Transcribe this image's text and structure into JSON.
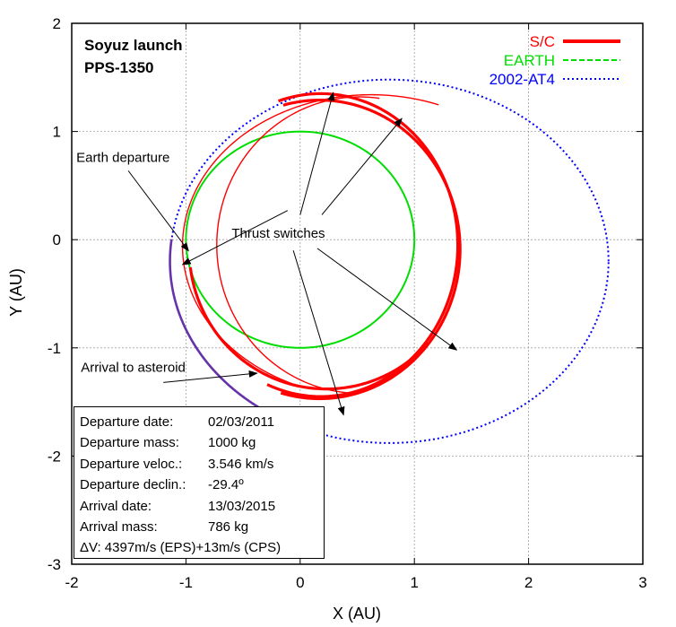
{
  "chart_data": {
    "type": "line",
    "title_lines": [
      "Soyuz launch",
      "PPS-1350"
    ],
    "xlabel": "X (AU)",
    "ylabel": "Y (AU)",
    "xlim": [
      -2,
      3
    ],
    "ylim": [
      -3,
      2
    ],
    "xticks": [
      -2,
      -1,
      0,
      1,
      2,
      3
    ],
    "yticks": [
      -3,
      -2,
      -1,
      0,
      1,
      2
    ],
    "grid": true,
    "legend_position": "top-right",
    "series": [
      {
        "name": "S/C",
        "color": "#ff0000",
        "style": "solid-thick"
      },
      {
        "name": "EARTH",
        "color": "#00dd00",
        "style": "dashed"
      },
      {
        "name": "2002-AT4",
        "color": "#0000ff",
        "style": "dotted"
      }
    ],
    "earth_orbit": {
      "center": [
        0,
        0
      ],
      "radius": 1.0
    },
    "asteroid_orbit": {
      "center": [
        0.78,
        -0.2
      ],
      "rx": 1.92,
      "ry": 1.68
    },
    "spacecraft_arcs": [
      {
        "center": [
          0.18,
          -0.05
        ],
        "rx": 1.2,
        "ry": 1.4,
        "start_deg": 247,
        "end_deg": 468,
        "thrust": true
      },
      {
        "center": [
          0.62,
          -0.06
        ],
        "rx": 1.65,
        "ry": 1.4,
        "start_deg": 69,
        "end_deg": 248,
        "thrust": false
      },
      {
        "center": [
          0.17,
          -0.09
        ],
        "rx": 1.23,
        "ry": 1.38,
        "start_deg": 254,
        "end_deg": 465,
        "thrust": true
      },
      {
        "center": [
          0.52,
          -0.05
        ],
        "rx": 1.25,
        "ry": 1.37,
        "start_deg": 82,
        "end_deg": 266,
        "thrust": false
      },
      {
        "center": [
          0.23,
          -0.1
        ],
        "rx": 1.2,
        "ry": 1.28,
        "start_deg": 187,
        "end_deg": 318,
        "thrust": true
      }
    ],
    "asteroid_arrival_arc": {
      "center": [
        0.78,
        -0.2
      ],
      "rx": 1.92,
      "ry": 1.68,
      "start_deg": 173,
      "end_deg": 238
    },
    "annotations": [
      {
        "text": "Earth departure",
        "x": -1.96,
        "y": 0.72,
        "arrow_to": [
          -1.04,
          -0.27
        ]
      },
      {
        "text": "Thrust switches",
        "x": -0.6,
        "y": 0.02
      },
      {
        "text": "Arrival to asteroid",
        "x": -1.92,
        "y": -1.22,
        "arrow_to": [
          -0.44,
          -1.4
        ]
      }
    ],
    "arrows": [
      {
        "from": [
          -0.11,
          0.27
        ],
        "to": [
          -1.03,
          -0.23
        ]
      },
      {
        "from": [
          0.0,
          0.23
        ],
        "to": [
          0.29,
          1.36
        ]
      },
      {
        "from": [
          0.19,
          0.23
        ],
        "to": [
          0.89,
          1.12
        ]
      },
      {
        "from": [
          0.15,
          -0.08
        ],
        "to": [
          1.37,
          -1.02
        ]
      },
      {
        "from": [
          -0.06,
          -0.1
        ],
        "to": [
          0.38,
          -1.62
        ]
      }
    ]
  },
  "infobox": [
    {
      "k": "Departure date:",
      "v": "02/03/2011"
    },
    {
      "k": "Departure mass:",
      "v": "1000 kg"
    },
    {
      "k": "Departure veloc.:",
      "v": "3.546 km/s"
    },
    {
      "k": "Departure declin.:",
      "v": "-29.4º"
    },
    {
      "k": "Arrival date:",
      "v": "13/03/2015"
    },
    {
      "k": "Arrival mass:",
      "v": "786 kg"
    }
  ],
  "infobox_dv": "ΔV: 4397m/s (EPS)+13m/s (CPS)"
}
